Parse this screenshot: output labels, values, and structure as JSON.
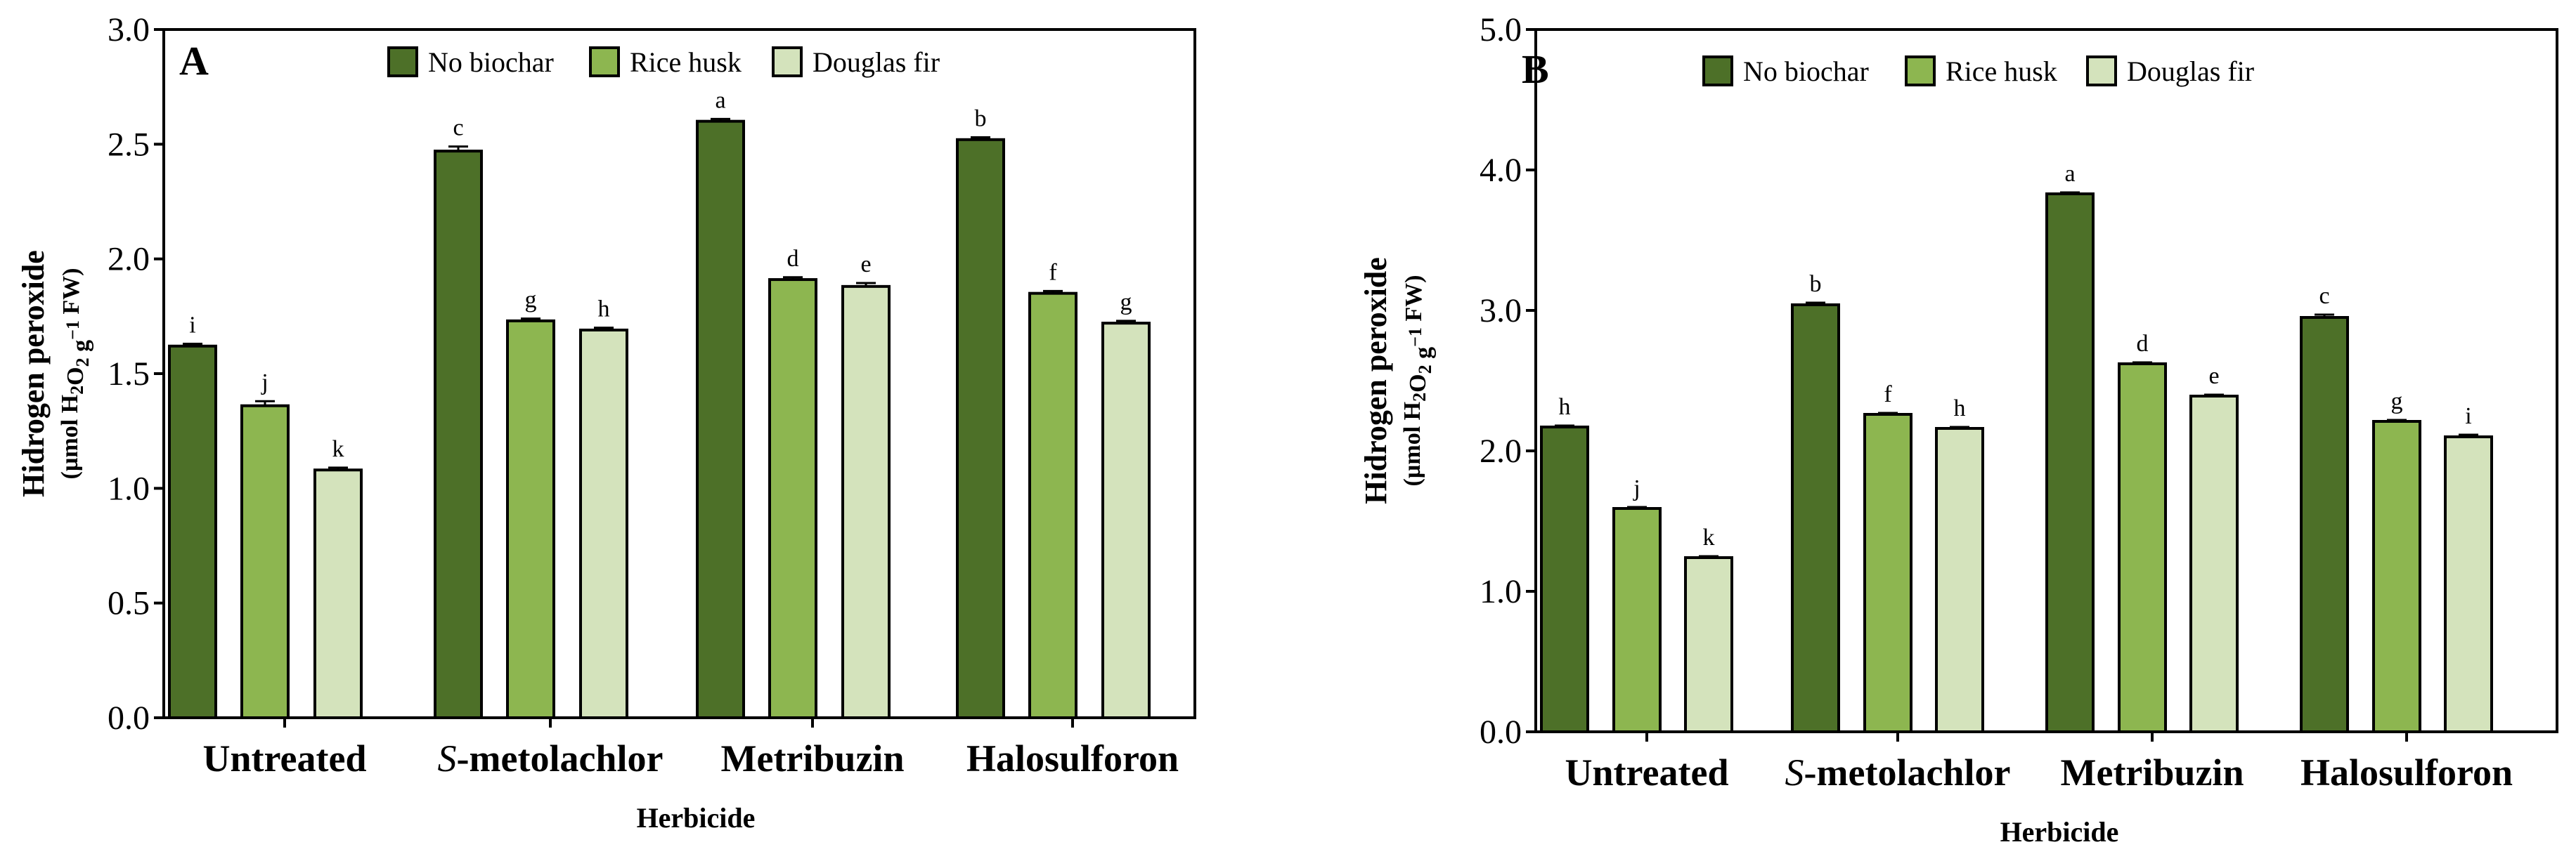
{
  "chart_data": [
    {
      "type": "bar",
      "panel": "A",
      "categories": [
        "Untreated",
        "S-metolachlor",
        "Metribuzin",
        "Halosulforon"
      ],
      "series": [
        {
          "name": "No biochar",
          "color": "#4d7028",
          "values": [
            1.62,
            2.47,
            2.6,
            2.52
          ],
          "errors": [
            0.01,
            0.02,
            0.01,
            0.01
          ],
          "letters": [
            "i",
            "c",
            "a",
            "b"
          ]
        },
        {
          "name": "Rice husk",
          "color": "#8db650",
          "values": [
            1.36,
            1.73,
            1.91,
            1.85
          ],
          "errors": [
            0.02,
            0.01,
            0.01,
            0.01
          ],
          "letters": [
            "j",
            "g",
            "d",
            "f"
          ]
        },
        {
          "name": "Douglas fir",
          "color": "#d4e3bc",
          "values": [
            1.08,
            1.69,
            1.88,
            1.72
          ],
          "errors": [
            0.01,
            0.01,
            0.015,
            0.01
          ],
          "letters": [
            "k",
            "h",
            "e",
            "g"
          ]
        }
      ],
      "ylim": [
        0,
        3.0
      ],
      "yticks": [
        "0.0",
        "0.5",
        "1.0",
        "1.5",
        "2.0",
        "2.5",
        "3.0"
      ],
      "xlabel": "Herbicide",
      "ylabel": "Hidrogen peroxide",
      "ylabel_unit": "(µmol H2O2 g-1 FW)",
      "legend": "top"
    },
    {
      "type": "bar",
      "panel": "B",
      "categories": [
        "Untreated",
        "S-metolachlor",
        "Metribuzin",
        "Halosulforon"
      ],
      "series": [
        {
          "name": "No biochar",
          "color": "#4d7028",
          "values": [
            2.17,
            3.04,
            3.83,
            2.95
          ],
          "errors": [
            0.01,
            0.015,
            0.01,
            0.02
          ],
          "letters": [
            "h",
            "b",
            "a",
            "c"
          ]
        },
        {
          "name": "Rice husk",
          "color": "#8db650",
          "values": [
            1.59,
            2.26,
            2.62,
            2.21
          ],
          "errors": [
            0.01,
            0.01,
            0.01,
            0.01
          ],
          "letters": [
            "j",
            "f",
            "d",
            "g"
          ]
        },
        {
          "name": "Douglas fir",
          "color": "#d4e3bc",
          "values": [
            1.24,
            2.16,
            2.39,
            2.1
          ],
          "errors": [
            0.01,
            0.01,
            0.01,
            0.015
          ],
          "letters": [
            "k",
            "h",
            "e",
            "i"
          ]
        }
      ],
      "ylim": [
        0,
        5.0
      ],
      "yticks": [
        "0.0",
        "1.0",
        "2.0",
        "3.0",
        "4.0",
        "5.0"
      ],
      "xlabel": "Herbicide",
      "ylabel": "Hidrogen peroxide",
      "ylabel_unit": "(µmol H2O2 g-1 FW)",
      "legend": "top"
    }
  ]
}
